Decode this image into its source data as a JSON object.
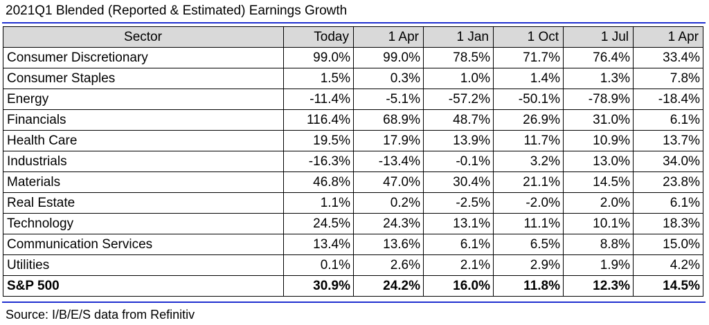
{
  "title": "2021Q1 Blended (Reported & Estimated) Earnings Growth",
  "table": {
    "headers": [
      "Sector",
      "Today",
      "1 Apr",
      "1 Jan",
      "1 Oct",
      "1 Jul",
      "1 Apr"
    ],
    "rows": [
      {
        "sector": "Consumer Discretionary",
        "values": [
          "99.0%",
          "99.0%",
          "78.5%",
          "71.7%",
          "76.4%",
          "33.4%"
        ]
      },
      {
        "sector": "Consumer Staples",
        "values": [
          "1.5%",
          "0.3%",
          "1.0%",
          "1.4%",
          "1.3%",
          "7.8%"
        ]
      },
      {
        "sector": "Energy",
        "values": [
          "-11.4%",
          "-5.1%",
          "-57.2%",
          "-50.1%",
          "-78.9%",
          "-18.4%"
        ]
      },
      {
        "sector": "Financials",
        "values": [
          "116.4%",
          "68.9%",
          "48.7%",
          "26.9%",
          "31.0%",
          "6.1%"
        ]
      },
      {
        "sector": "Health Care",
        "values": [
          "19.5%",
          "17.9%",
          "13.9%",
          "11.7%",
          "10.9%",
          "13.7%"
        ]
      },
      {
        "sector": "Industrials",
        "values": [
          "-16.3%",
          "-13.4%",
          "-0.1%",
          "3.2%",
          "13.0%",
          "34.0%"
        ]
      },
      {
        "sector": "Materials",
        "values": [
          "46.8%",
          "47.0%",
          "30.4%",
          "21.1%",
          "14.5%",
          "23.8%"
        ]
      },
      {
        "sector": "Real Estate",
        "values": [
          "1.1%",
          "0.2%",
          "-2.5%",
          "-2.0%",
          "2.0%",
          "6.1%"
        ]
      },
      {
        "sector": "Technology",
        "values": [
          "24.5%",
          "24.3%",
          "13.1%",
          "11.1%",
          "10.1%",
          "18.3%"
        ]
      },
      {
        "sector": "Communication Services",
        "values": [
          "13.4%",
          "13.6%",
          "6.1%",
          "6.5%",
          "8.8%",
          "15.0%"
        ]
      },
      {
        "sector": "Utilities",
        "values": [
          "0.1%",
          "2.6%",
          "2.1%",
          "2.9%",
          "1.9%",
          "4.2%"
        ]
      },
      {
        "sector": "S&P 500",
        "values": [
          "30.9%",
          "24.2%",
          "16.0%",
          "11.8%",
          "12.3%",
          "14.5%"
        ],
        "total": true
      }
    ]
  },
  "source": "Source: I/B/E/S data from Refinitiv",
  "colors": {
    "rule": "#1f2fd0",
    "header_bg": "#d9d9d9"
  }
}
